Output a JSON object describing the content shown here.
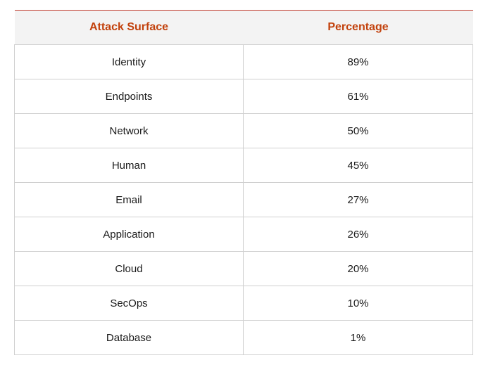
{
  "colors": {
    "header_text": "#c2410c",
    "header_bg": "#f3f3f3",
    "top_rule": "#c0392b",
    "cell_border": "#d0d0d0"
  },
  "chart_data": {
    "type": "table",
    "columns": [
      "Attack Surface",
      "Percentage"
    ],
    "rows": [
      [
        "Identity",
        "89%"
      ],
      [
        "Endpoints",
        "61%"
      ],
      [
        "Network",
        "50%"
      ],
      [
        "Human",
        "45%"
      ],
      [
        "Email",
        "27%"
      ],
      [
        "Application",
        "26%"
      ],
      [
        "Cloud",
        "20%"
      ],
      [
        "SecOps",
        "10%"
      ],
      [
        "Database",
        "1%"
      ]
    ]
  }
}
